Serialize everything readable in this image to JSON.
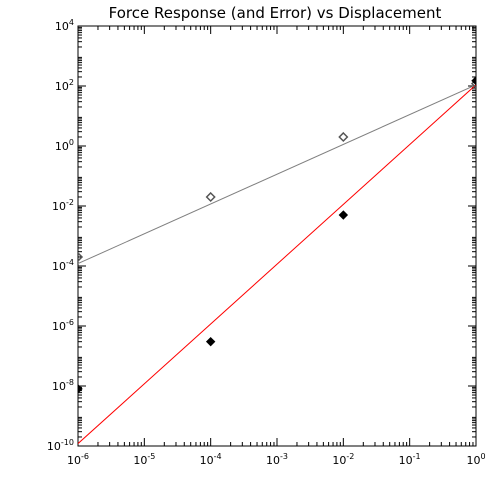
{
  "chart_data": {
    "type": "scatter",
    "title": "Force Response (and Error) vs Displacement",
    "xlabel": "",
    "ylabel": "",
    "x_scale": "log",
    "y_scale": "log",
    "xlim": [
      1e-06,
      1
    ],
    "ylim": [
      1e-10,
      10000.0
    ],
    "x_ticks": [
      {
        "value": 1e-06,
        "base": "10",
        "exp": "-6"
      },
      {
        "value": 1e-05,
        "base": "10",
        "exp": "-5"
      },
      {
        "value": 0.0001,
        "base": "10",
        "exp": "-4"
      },
      {
        "value": 0.001,
        "base": "10",
        "exp": "-3"
      },
      {
        "value": 0.01,
        "base": "10",
        "exp": "-2"
      },
      {
        "value": 0.1,
        "base": "10",
        "exp": "-1"
      },
      {
        "value": 1,
        "base": "10",
        "exp": "0"
      }
    ],
    "y_ticks": [
      {
        "value": 1e-10,
        "base": "10",
        "exp": "-10"
      },
      {
        "value": 1e-08,
        "base": "10",
        "exp": "-8"
      },
      {
        "value": 1e-06,
        "base": "10",
        "exp": "-6"
      },
      {
        "value": 0.0001,
        "base": "10",
        "exp": "-4"
      },
      {
        "value": 0.01,
        "base": "10",
        "exp": "-2"
      },
      {
        "value": 1,
        "base": "10",
        "exp": "0"
      },
      {
        "value": 100,
        "base": "10",
        "exp": "2"
      },
      {
        "value": 10000,
        "base": "10",
        "exp": "4"
      }
    ],
    "grid": false,
    "series": [
      {
        "kind": "points",
        "marker": "open-diamond",
        "color": "#555555",
        "x": [
          1e-06,
          0.0001,
          0.01,
          1
        ],
        "y": [
          0.0002,
          0.02,
          2,
          120
        ]
      },
      {
        "kind": "points",
        "marker": "filled-diamond",
        "color": "#000000",
        "x": [
          1e-06,
          0.0001,
          0.01,
          1
        ],
        "y": [
          8e-09,
          3e-07,
          0.005,
          150
        ]
      },
      {
        "kind": "line",
        "color": "#808080",
        "x": [
          1e-06,
          1
        ],
        "y": [
          0.00012,
          110
        ]
      },
      {
        "kind": "line",
        "color": "#ff0000",
        "x": [
          1e-06,
          1
        ],
        "y": [
          1.2e-10,
          110
        ]
      }
    ]
  }
}
